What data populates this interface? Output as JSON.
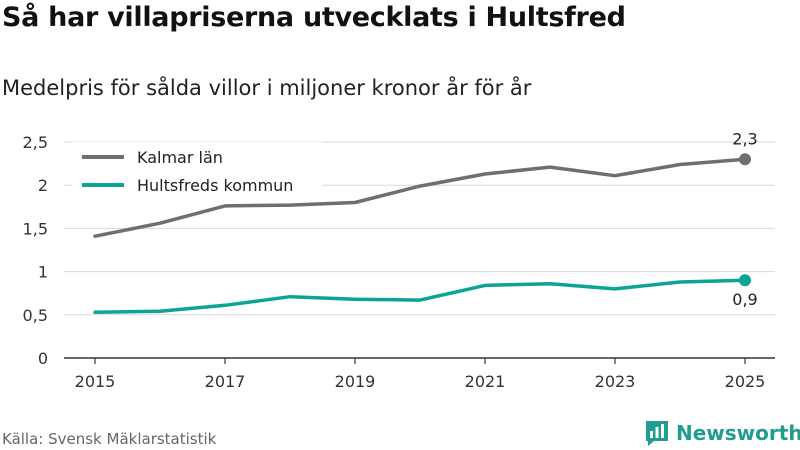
{
  "title": "Så har villapriserna utvecklats i Hultsfred",
  "subtitle": "Medelpris för sålda villor i miljoner kronor år för år",
  "source": "Källa: Svensk Mäklarstatistik",
  "brand": {
    "name": "Newsworthy",
    "logo_icon": "bar-chart-bubble-icon",
    "color": "#1f9d8f"
  },
  "chart_data": {
    "type": "line",
    "title": "Så har villapriserna utvecklats i Hultsfred",
    "subtitle": "Medelpris för sålda villor i miljoner kronor år för år",
    "xlabel": "",
    "ylabel": "",
    "x": [
      2015,
      2016,
      2017,
      2018,
      2019,
      2020,
      2021,
      2022,
      2023,
      2024,
      2025
    ],
    "x_ticks": [
      "2015",
      "2017",
      "2019",
      "2021",
      "2023",
      "2025"
    ],
    "x_tick_values": [
      2015,
      2017,
      2019,
      2021,
      2023,
      2025
    ],
    "y_ticks": [
      "0",
      "0,5",
      "1",
      "1,5",
      "2",
      "2,5"
    ],
    "y_tick_values": [
      0,
      0.5,
      1,
      1.5,
      2,
      2.5
    ],
    "xlim": [
      2015,
      2025
    ],
    "ylim": [
      0,
      2.5
    ],
    "grid": true,
    "legend_position": "top-left",
    "series": [
      {
        "name": "Kalmar län",
        "color": "#6e6e73",
        "values": [
          1.41,
          1.56,
          1.76,
          1.77,
          1.8,
          1.99,
          2.13,
          2.21,
          2.11,
          2.24,
          2.3
        ],
        "end_label": "2,3"
      },
      {
        "name": "Hultsfreds kommun",
        "color": "#0aa595",
        "values": [
          0.53,
          0.54,
          0.61,
          0.71,
          0.68,
          0.67,
          0.84,
          0.86,
          0.8,
          0.88,
          0.9
        ],
        "end_label": "0,9"
      }
    ]
  }
}
